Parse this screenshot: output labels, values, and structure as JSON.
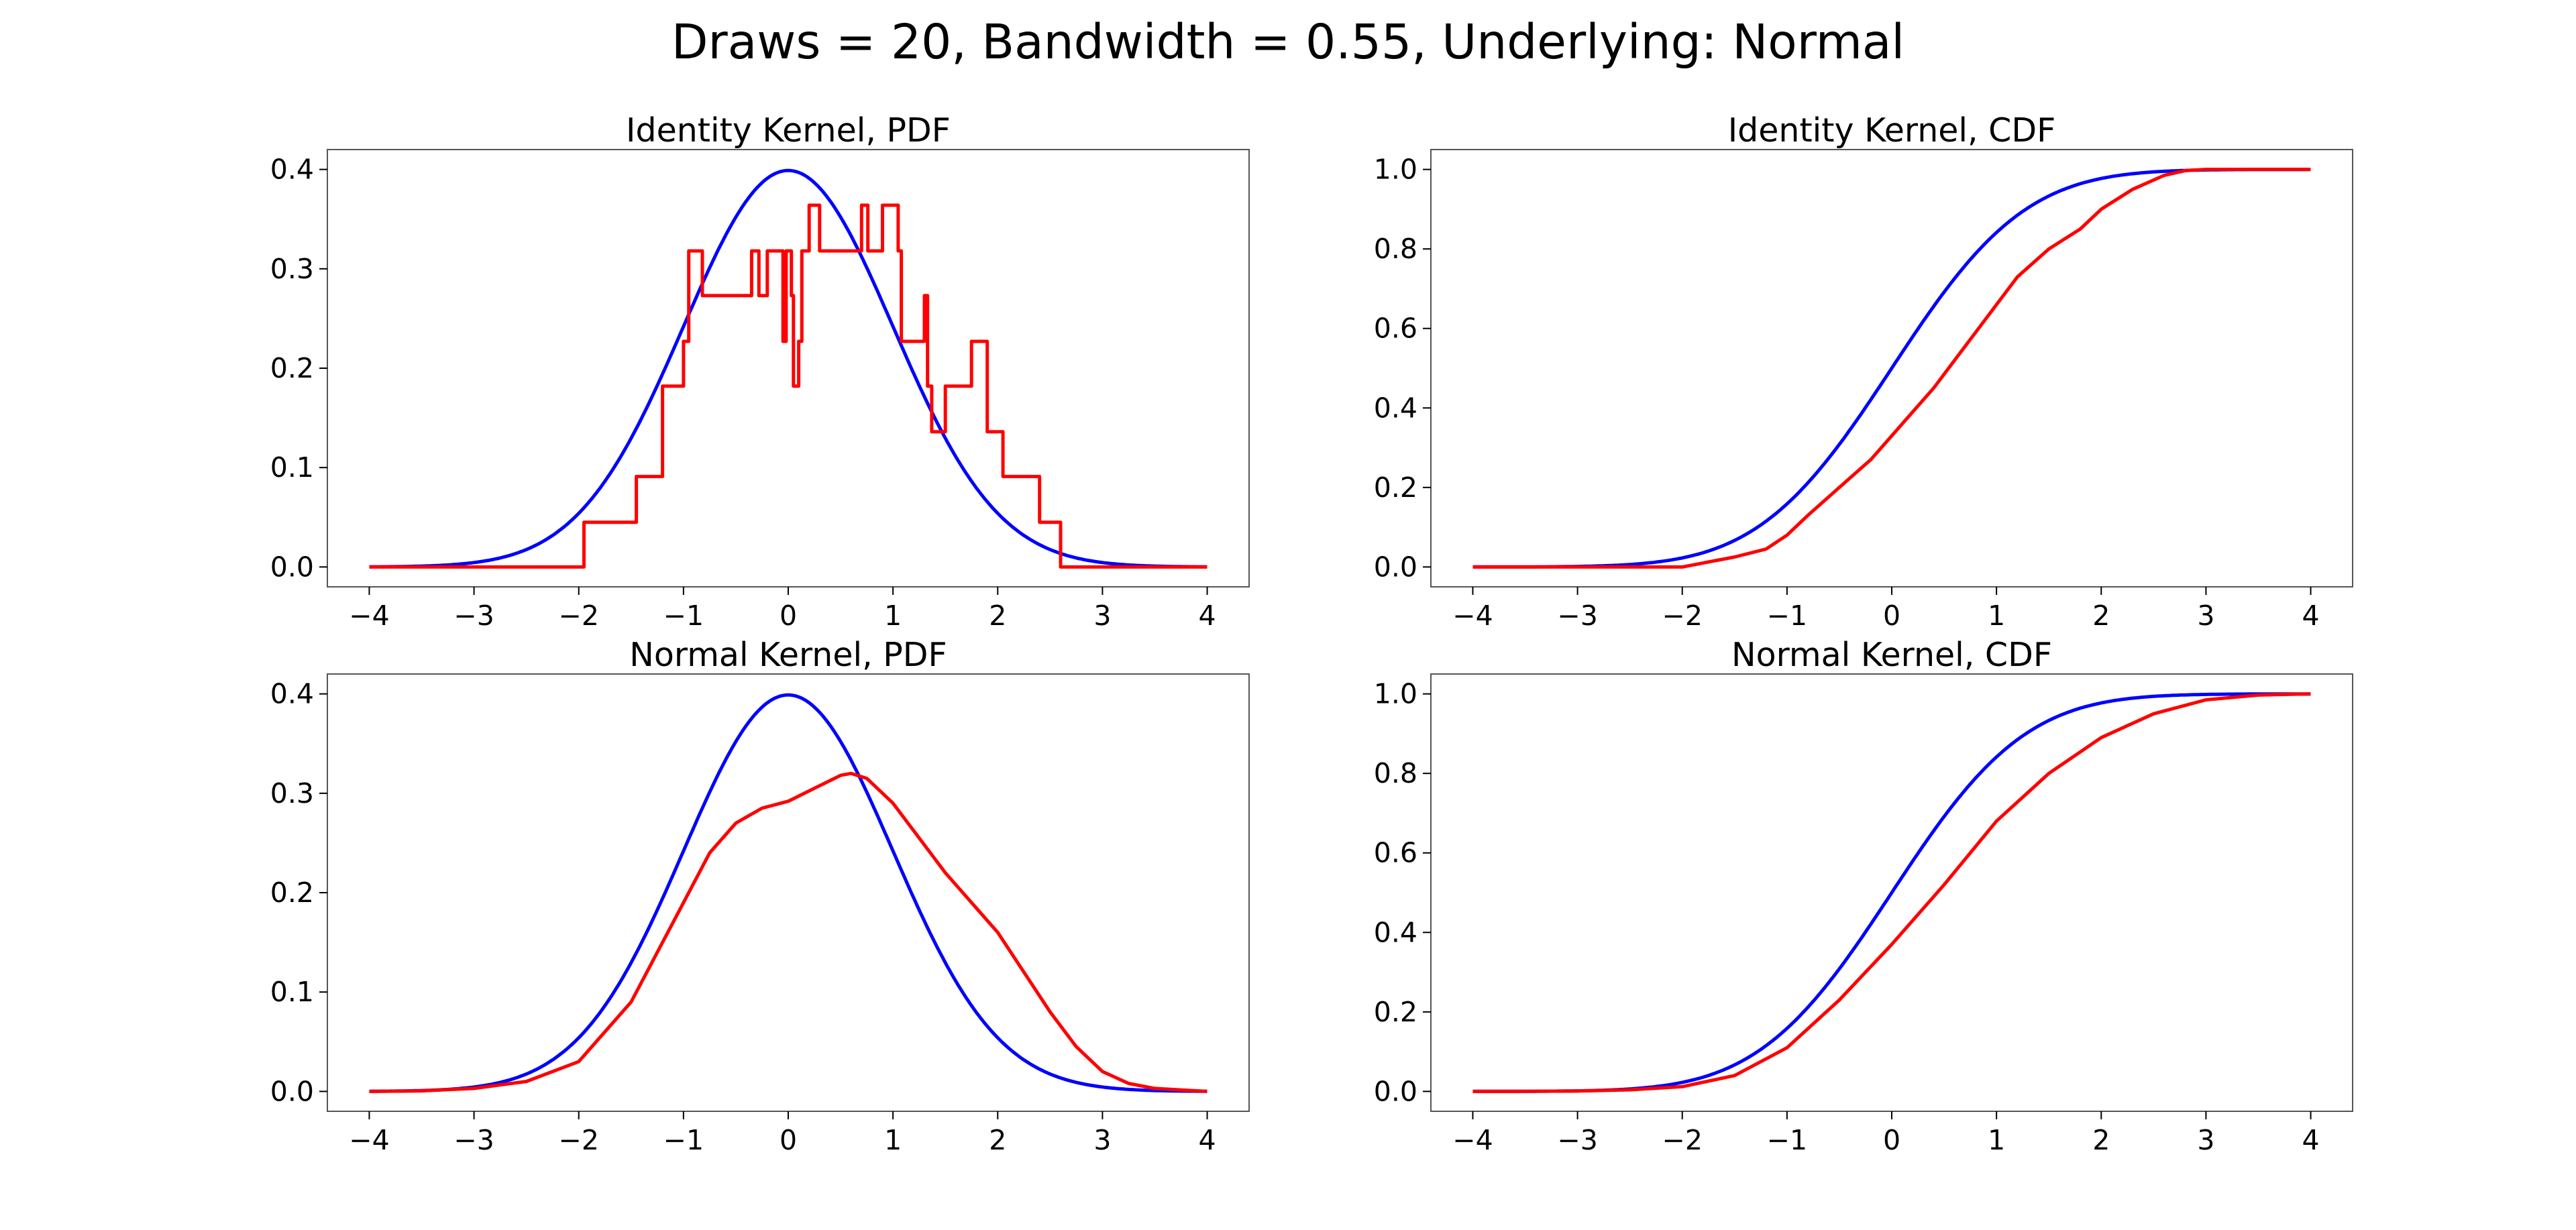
{
  "figure": {
    "suptitle": "Draws = 20, Bandwidth = 0.55, Underlying: Normal"
  },
  "colors": {
    "underlying": "#0000ff",
    "estimate": "#ff0000"
  },
  "chart_data": [
    {
      "id": "identity-pdf",
      "type": "line",
      "kernel": "identity",
      "kind": "pdf",
      "title": "Identity Kernel, PDF",
      "xlim": [
        -4.4,
        4.4
      ],
      "ylim": [
        -0.02,
        0.42
      ],
      "xticks": [
        -4,
        -3,
        -2,
        -1,
        0,
        1,
        2,
        3,
        4
      ],
      "xtick_labels": [
        "−4",
        "−3",
        "−2",
        "−1",
        "0",
        "1",
        "2",
        "3",
        "4"
      ],
      "yticks": [
        0.0,
        0.1,
        0.2,
        0.3,
        0.4
      ],
      "ytick_labels": [
        "0.0",
        "0.1",
        "0.2",
        "0.3",
        "0.4"
      ],
      "series": [
        {
          "role": "underlying",
          "color": "#0000ff",
          "function": "normal_pdf"
        },
        {
          "role": "estimate",
          "color": "#ff0000",
          "x": [
            -4,
            -1.95,
            -1.95,
            -1.45,
            -1.45,
            -1.2,
            -1.2,
            -1.0,
            -1.0,
            -0.95,
            -0.95,
            -0.82,
            -0.82,
            -0.72,
            -0.72,
            -0.35,
            -0.35,
            -0.28,
            -0.28,
            -0.2,
            -0.2,
            -0.05,
            -0.05,
            -0.02,
            -0.02,
            0.03,
            0.03,
            0.05,
            0.05,
            0.1,
            0.1,
            0.13,
            0.13,
            0.2,
            0.2,
            0.25,
            0.25,
            0.3,
            0.3,
            0.7,
            0.7,
            0.76,
            0.76,
            0.9,
            0.9,
            1.05,
            1.05,
            1.08,
            1.08,
            1.3,
            1.3,
            1.33,
            1.33,
            1.37,
            1.37,
            1.5,
            1.5,
            1.75,
            1.75,
            1.9,
            1.9,
            2.05,
            2.05,
            2.4,
            2.4,
            2.6,
            2.6,
            2.78,
            2.78,
            4
          ],
          "y": [
            0,
            0,
            0.045,
            0.045,
            0.091,
            0.091,
            0.182,
            0.182,
            0.227,
            0.227,
            0.318,
            0.318,
            0.273,
            0.273,
            0.273,
            0.273,
            0.318,
            0.318,
            0.273,
            0.273,
            0.318,
            0.318,
            0.227,
            0.227,
            0.318,
            0.318,
            0.273,
            0.273,
            0.182,
            0.182,
            0.227,
            0.227,
            0.318,
            0.318,
            0.364,
            0.364,
            0.364,
            0.364,
            0.318,
            0.318,
            0.364,
            0.364,
            0.318,
            0.318,
            0.364,
            0.364,
            0.318,
            0.318,
            0.227,
            0.227,
            0.273,
            0.273,
            0.182,
            0.182,
            0.136,
            0.136,
            0.182,
            0.182,
            0.227,
            0.227,
            0.136,
            0.136,
            0.091,
            0.091,
            0.045,
            0.045,
            0,
            0,
            0,
            0
          ]
        }
      ]
    },
    {
      "id": "identity-cdf",
      "type": "line",
      "kernel": "identity",
      "kind": "cdf",
      "title": "Identity Kernel, CDF",
      "xlim": [
        -4.4,
        4.4
      ],
      "ylim": [
        -0.05,
        1.05
      ],
      "xticks": [
        -4,
        -3,
        -2,
        -1,
        0,
        1,
        2,
        3,
        4
      ],
      "xtick_labels": [
        "−4",
        "−3",
        "−2",
        "−1",
        "0",
        "1",
        "2",
        "3",
        "4"
      ],
      "yticks": [
        0.0,
        0.2,
        0.4,
        0.6,
        0.8,
        1.0
      ],
      "ytick_labels": [
        "0.0",
        "0.2",
        "0.4",
        "0.6",
        "0.8",
        "1.0"
      ],
      "series": [
        {
          "role": "underlying",
          "color": "#0000ff",
          "function": "normal_cdf"
        },
        {
          "role": "estimate",
          "color": "#ff0000",
          "x": [
            -4,
            -2.0,
            -1.8,
            -1.5,
            -1.2,
            -1.0,
            -0.8,
            -0.5,
            -0.2,
            0,
            0.2,
            0.4,
            0.6,
            0.8,
            1.0,
            1.2,
            1.5,
            1.8,
            2.0,
            2.3,
            2.6,
            2.8,
            3.0,
            4.0
          ],
          "y": [
            0,
            0,
            0.01,
            0.025,
            0.045,
            0.08,
            0.13,
            0.2,
            0.27,
            0.33,
            0.39,
            0.45,
            0.52,
            0.59,
            0.66,
            0.73,
            0.8,
            0.85,
            0.9,
            0.95,
            0.985,
            0.997,
            1.0,
            1.0
          ]
        }
      ]
    },
    {
      "id": "normal-pdf",
      "type": "line",
      "kernel": "normal",
      "kind": "pdf",
      "title": "Normal Kernel, PDF",
      "xlim": [
        -4.4,
        4.4
      ],
      "ylim": [
        -0.02,
        0.42
      ],
      "xticks": [
        -4,
        -3,
        -2,
        -1,
        0,
        1,
        2,
        3,
        4
      ],
      "xtick_labels": [
        "−4",
        "−3",
        "−2",
        "−1",
        "0",
        "1",
        "2",
        "3",
        "4"
      ],
      "yticks": [
        0.0,
        0.1,
        0.2,
        0.3,
        0.4
      ],
      "ytick_labels": [
        "0.0",
        "0.1",
        "0.2",
        "0.3",
        "0.4"
      ],
      "series": [
        {
          "role": "underlying",
          "color": "#0000ff",
          "function": "normal_pdf"
        },
        {
          "role": "estimate",
          "color": "#ff0000",
          "x": [
            -4,
            -3.5,
            -3,
            -2.5,
            -2,
            -1.5,
            -1,
            -0.75,
            -0.5,
            -0.25,
            0,
            0.25,
            0.5,
            0.6,
            0.75,
            1,
            1.25,
            1.5,
            1.75,
            2,
            2.25,
            2.5,
            2.75,
            3,
            3.25,
            3.5,
            4
          ],
          "y": [
            0,
            0.0005,
            0.003,
            0.01,
            0.03,
            0.09,
            0.19,
            0.24,
            0.27,
            0.285,
            0.292,
            0.305,
            0.318,
            0.32,
            0.315,
            0.29,
            0.255,
            0.22,
            0.19,
            0.16,
            0.12,
            0.08,
            0.045,
            0.02,
            0.008,
            0.003,
            0
          ]
        }
      ]
    },
    {
      "id": "normal-cdf",
      "type": "line",
      "kernel": "normal",
      "kind": "cdf",
      "title": "Normal Kernel, CDF",
      "xlim": [
        -4.4,
        4.4
      ],
      "ylim": [
        -0.05,
        1.05
      ],
      "xticks": [
        -4,
        -3,
        -2,
        -1,
        0,
        1,
        2,
        3,
        4
      ],
      "xtick_labels": [
        "−4",
        "−3",
        "−2",
        "−1",
        "0",
        "1",
        "2",
        "3",
        "4"
      ],
      "yticks": [
        0.0,
        0.2,
        0.4,
        0.6,
        0.8,
        1.0
      ],
      "ytick_labels": [
        "0.0",
        "0.2",
        "0.4",
        "0.6",
        "0.8",
        "1.0"
      ],
      "series": [
        {
          "role": "underlying",
          "color": "#0000ff",
          "function": "normal_cdf"
        },
        {
          "role": "estimate",
          "color": "#ff0000",
          "x": [
            -4,
            -3.5,
            -3,
            -2.5,
            -2,
            -1.5,
            -1,
            -0.5,
            0,
            0.5,
            1,
            1.5,
            2,
            2.5,
            3,
            3.5,
            4
          ],
          "y": [
            0,
            0.0003,
            0.001,
            0.004,
            0.012,
            0.04,
            0.11,
            0.23,
            0.37,
            0.52,
            0.68,
            0.8,
            0.89,
            0.95,
            0.985,
            0.997,
            1.0
          ]
        }
      ]
    }
  ]
}
